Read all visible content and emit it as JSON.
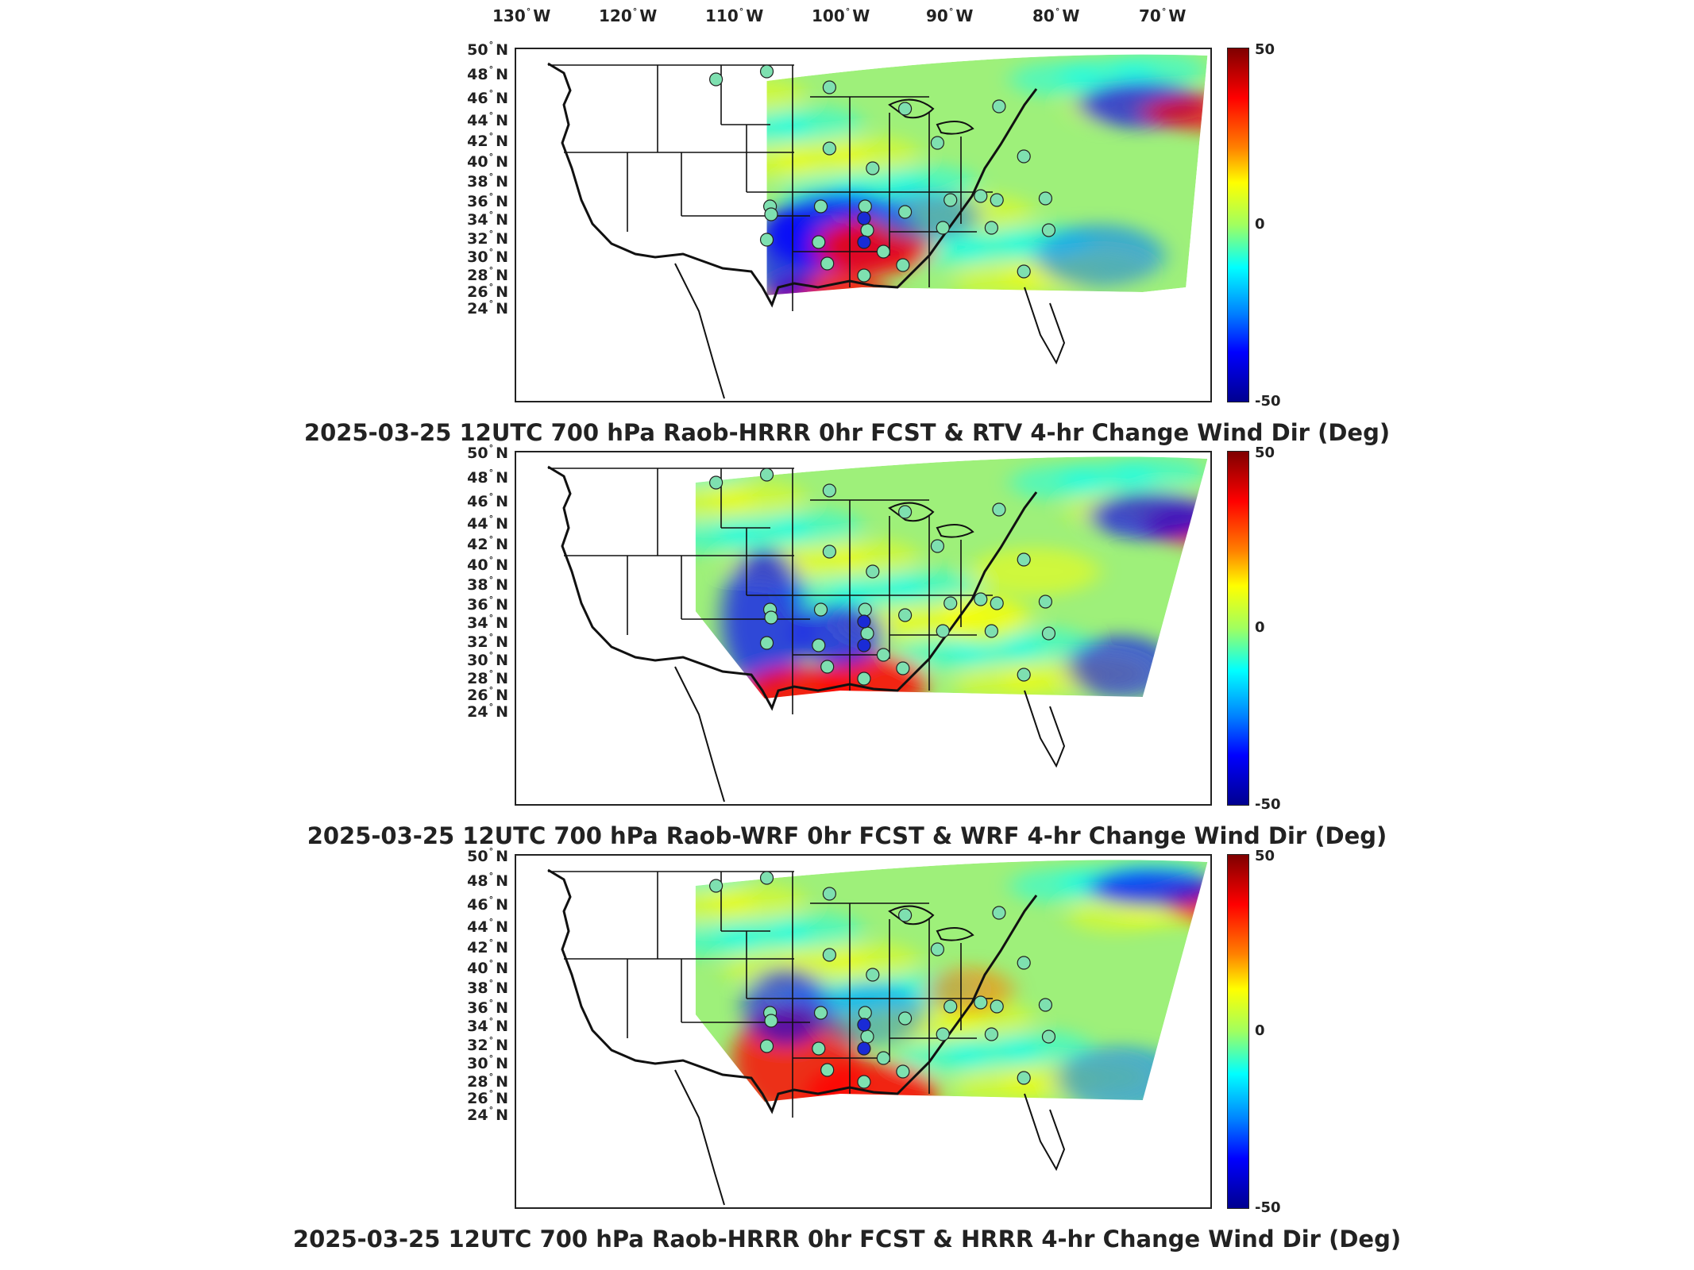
{
  "longitude_labels": [
    {
      "deg": "130",
      "dir": "W"
    },
    {
      "deg": "120",
      "dir": "W"
    },
    {
      "deg": "110",
      "dir": "W"
    },
    {
      "deg": "100",
      "dir": "W"
    },
    {
      "deg": "90",
      "dir": "W"
    },
    {
      "deg": "80",
      "dir": "W"
    },
    {
      "deg": "70",
      "dir": "W"
    }
  ],
  "latitude_labels": [
    {
      "deg": "50",
      "dir": "N"
    },
    {
      "deg": "48",
      "dir": "N"
    },
    {
      "deg": "46",
      "dir": "N"
    },
    {
      "deg": "44",
      "dir": "N"
    },
    {
      "deg": "42",
      "dir": "N"
    },
    {
      "deg": "40",
      "dir": "N"
    },
    {
      "deg": "38",
      "dir": "N"
    },
    {
      "deg": "36",
      "dir": "N"
    },
    {
      "deg": "34",
      "dir": "N"
    },
    {
      "deg": "32",
      "dir": "N"
    },
    {
      "deg": "30",
      "dir": "N"
    },
    {
      "deg": "28",
      "dir": "N"
    },
    {
      "deg": "26",
      "dir": "N"
    },
    {
      "deg": "24",
      "dir": "N"
    }
  ],
  "colorbar": {
    "max_label": "50",
    "mid_label": "0",
    "min_label": "-50",
    "colors": [
      "#7f0000",
      "#ff0000",
      "#ff8000",
      "#ffff00",
      "#a0ff60",
      "#00ffff",
      "#0080ff",
      "#0000ff",
      "#00008f"
    ]
  },
  "panels": [
    {
      "title": "2025-03-25 12UTC 700 hPa Raob-HRRR 0hr FCST & RTV 4-hr Change Wind Dir (Deg)"
    },
    {
      "title": "2025-03-25 12UTC 700 hPa Raob-WRF 0hr FCST & WRF 4-hr Change Wind Dir (Deg)"
    },
    {
      "title": "2025-03-25 12UTC 700 hPa Raob-HRRR 0hr FCST & HRRR 4-hr Change Wind Dir (Deg)"
    }
  ],
  "raob_station_color": "#7ee0b0"
}
